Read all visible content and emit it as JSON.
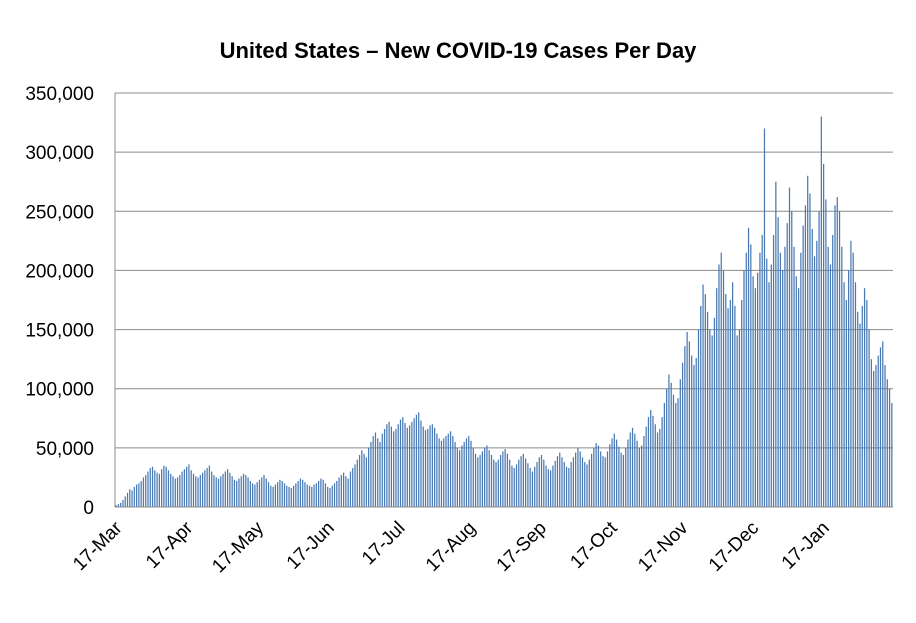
{
  "chart_data": {
    "type": "bar",
    "title": "United States – New COVID-19 Cases Per Day",
    "xlabel": "",
    "ylabel": "",
    "ylim": [
      0,
      350000
    ],
    "yticks": [
      0,
      50000,
      100000,
      150000,
      200000,
      250000,
      300000,
      350000
    ],
    "ytick_labels": [
      "0",
      "50,000",
      "100,000",
      "150,000",
      "200,000",
      "250,000",
      "300,000",
      "350,000"
    ],
    "xtick_labels": [
      "17-Mar",
      "17-Apr",
      "17-May",
      "17-Jun",
      "17-Jul",
      "17-Aug",
      "17-Sep",
      "17-Oct",
      "17-Nov",
      "17-Dec",
      "17-Jan"
    ],
    "grid": true,
    "legend": "none",
    "bar_color": "#4a7ab5",
    "series": [
      {
        "values": [
          1500,
          2500,
          3500,
          6000,
          9000,
          12000,
          15000,
          14000,
          17000,
          19000,
          20000,
          22000,
          25000,
          27000,
          30000,
          33000,
          34000,
          31000,
          29000,
          28000,
          32000,
          35000,
          34000,
          31000,
          28000,
          26000,
          24000,
          25000,
          27000,
          30000,
          32000,
          34000,
          36000,
          31000,
          28000,
          26000,
          25000,
          27000,
          29000,
          31000,
          33000,
          35000,
          30000,
          27000,
          25000,
          24000,
          26000,
          28000,
          30000,
          32000,
          29000,
          26000,
          23000,
          22000,
          24000,
          26000,
          28000,
          27000,
          25000,
          22000,
          20000,
          19000,
          21000,
          23000,
          25000,
          27000,
          24000,
          21000,
          18000,
          17000,
          19000,
          21000,
          23000,
          22000,
          20000,
          18000,
          17000,
          16000,
          18000,
          20000,
          22000,
          24000,
          23000,
          21000,
          19000,
          18000,
          17000,
          19000,
          20000,
          22000,
          24000,
          23000,
          20000,
          17000,
          16000,
          18000,
          20000,
          22000,
          25000,
          27000,
          29000,
          26000,
          24000,
          30000,
          33000,
          36000,
          40000,
          44000,
          48000,
          45000,
          42000,
          50000,
          55000,
          60000,
          63000,
          58000,
          55000,
          62000,
          66000,
          70000,
          72000,
          68000,
          64000,
          66000,
          70000,
          74000,
          76000,
          71000,
          67000,
          69000,
          72000,
          75000,
          78000,
          80000,
          73000,
          68000,
          65000,
          66000,
          69000,
          70000,
          67000,
          62000,
          58000,
          56000,
          58000,
          60000,
          62000,
          64000,
          60000,
          55000,
          50000,
          48000,
          52000,
          55000,
          58000,
          60000,
          56000,
          50000,
          45000,
          42000,
          44000,
          47000,
          50000,
          52000,
          48000,
          44000,
          40000,
          38000,
          40000,
          44000,
          47000,
          49000,
          45000,
          40000,
          35000,
          33000,
          36000,
          40000,
          43000,
          45000,
          41000,
          37000,
          33000,
          30000,
          34000,
          38000,
          42000,
          44000,
          40000,
          35000,
          32000,
          31000,
          35000,
          39000,
          43000,
          46000,
          42000,
          38000,
          34000,
          33000,
          38000,
          42000,
          46000,
          50000,
          47000,
          42000,
          38000,
          36000,
          40000,
          45000,
          50000,
          54000,
          52000,
          47000,
          43000,
          42000,
          47000,
          53000,
          58000,
          62000,
          57000,
          51000,
          46000,
          44000,
          50000,
          57000,
          63000,
          67000,
          62000,
          56000,
          50000,
          52000,
          60000,
          68000,
          76000,
          82000,
          77000,
          70000,
          63000,
          66000,
          76000,
          88000,
          100000,
          112000,
          105000,
          95000,
          88000,
          92000,
          108000,
          122000,
          136000,
          148000,
          140000,
          128000,
          120000,
          126000,
          150000,
          170000,
          188000,
          180000,
          165000,
          150000,
          145000,
          160000,
          185000,
          205000,
          215000,
          200000,
          180000,
          168000,
          175000,
          190000,
          170000,
          145000,
          150000,
          175000,
          200000,
          215000,
          236000,
          222000,
          195000,
          185000,
          198000,
          215000,
          230000,
          320000,
          210000,
          190000,
          205000,
          230000,
          275000,
          245000,
          215000,
          200000,
          220000,
          240000,
          270000,
          250000,
          220000,
          195000,
          185000,
          215000,
          238000,
          255000,
          280000,
          265000,
          235000,
          212000,
          225000,
          250000,
          330000,
          290000,
          260000,
          220000,
          205000,
          230000,
          255000,
          262000,
          250000,
          220000,
          190000,
          175000,
          200000,
          225000,
          215000,
          190000,
          165000,
          155000,
          170000,
          185000,
          175000,
          150000,
          125000,
          115000,
          120000,
          128000,
          135000,
          140000,
          120000,
          108000,
          100000,
          88000
        ]
      }
    ]
  }
}
